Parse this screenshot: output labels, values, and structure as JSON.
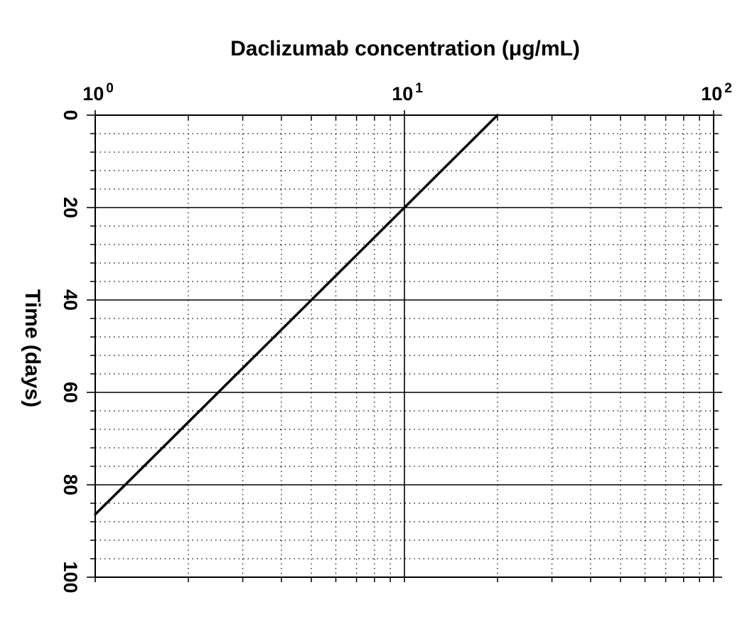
{
  "chart_data": {
    "type": "line",
    "xlabel": "Daclizumab concentration (μg/mL)",
    "ylabel": "Time (days)",
    "x_scale": "log",
    "x_axis_position": "top",
    "y_axis_inverted": true,
    "xlim": [
      1,
      100
    ],
    "ylim": [
      0,
      100
    ],
    "x_ticks": [
      {
        "value": 1,
        "base": "10",
        "exp": "0"
      },
      {
        "value": 10,
        "base": "10",
        "exp": "1"
      },
      {
        "value": 100,
        "base": "10",
        "exp": "2"
      }
    ],
    "y_ticks": [
      {
        "value": 0,
        "label": "0"
      },
      {
        "value": 20,
        "label": "20"
      },
      {
        "value": 40,
        "label": "40"
      },
      {
        "value": 60,
        "label": "60"
      },
      {
        "value": 80,
        "label": "80"
      },
      {
        "value": 100,
        "label": "100"
      }
    ],
    "grid": true,
    "series": [
      {
        "points": [
          {
            "x": 20,
            "y": 0
          },
          {
            "x": 10,
            "y": 20
          },
          {
            "x": 5,
            "y": 40
          },
          {
            "x": 2.5,
            "y": 60
          },
          {
            "x": 1.25,
            "y": 80
          },
          {
            "x": 1,
            "y": 86.4
          }
        ],
        "color": "#000000"
      }
    ]
  }
}
